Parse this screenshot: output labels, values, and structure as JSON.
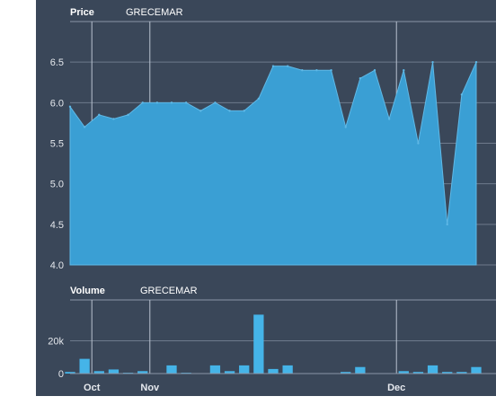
{
  "chart_data": [
    {
      "type": "area",
      "panel_label": "Price",
      "series_name": "GRECEMAR",
      "ylim": [
        4.0,
        7.0
      ],
      "y_ticks": [
        "4.0",
        "4.5",
        "5.0",
        "5.5",
        "6.0",
        "6.5"
      ],
      "y_tick_values": [
        4.0,
        4.5,
        5.0,
        5.5,
        6.0,
        6.5
      ],
      "values": [
        5.95,
        5.7,
        5.85,
        5.8,
        5.85,
        6.0,
        6.0,
        6.0,
        6.0,
        5.9,
        6.0,
        5.9,
        5.9,
        6.05,
        6.45,
        6.45,
        6.4,
        6.4,
        6.4,
        5.7,
        6.3,
        6.4,
        5.8,
        6.4,
        5.5,
        6.5,
        4.5,
        6.1,
        6.5
      ],
      "fill_color": "#3a9fd4",
      "grid": true
    },
    {
      "type": "bar",
      "panel_label": "Volume",
      "series_name": "GRECEMAR",
      "ylim": [
        0,
        45000
      ],
      "y_ticks": [
        "0",
        "20k"
      ],
      "y_tick_values": [
        0,
        20000
      ],
      "values": [
        1000,
        9000,
        1500,
        2500,
        500,
        1500,
        200,
        5000,
        500,
        200,
        5000,
        1500,
        5000,
        36000,
        2800,
        5000,
        200,
        200,
        200,
        1000,
        4000,
        200,
        200,
        1500,
        1000,
        5000,
        1000,
        1000,
        4000
      ],
      "bar_color": "#45b4e8",
      "grid": true
    }
  ],
  "x_axis": {
    "labels": [
      "Oct",
      "Nov",
      "Dec"
    ],
    "label_indices": [
      1.5,
      5.5,
      22.5
    ]
  }
}
